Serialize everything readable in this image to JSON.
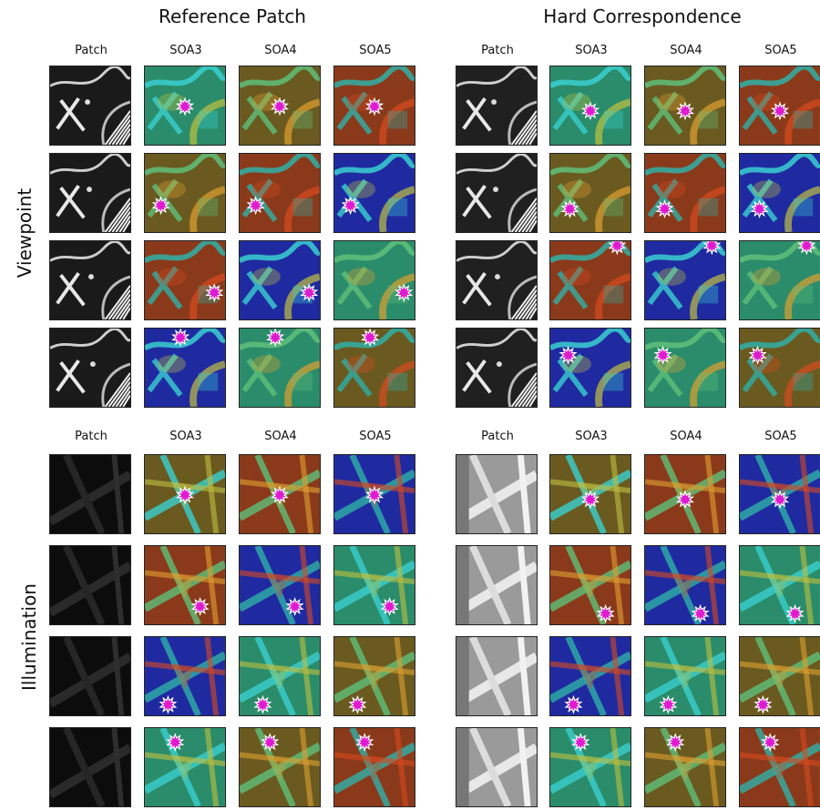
{
  "panels": [
    {
      "title": "Reference Patch"
    },
    {
      "title": "Hard Correspondence"
    }
  ],
  "sections": [
    {
      "name": "Viewpoint",
      "columns": [
        "Patch",
        "SOA3",
        "SOA4",
        "SOA5"
      ]
    },
    {
      "name": "Illumination",
      "columns": [
        "Patch",
        "SOA3",
        "SOA4",
        "SOA5"
      ]
    }
  ],
  "colors": {
    "marker_fill": "#e01ad0",
    "marker_stroke": "#ffffff",
    "heat_cool": "#1a2a9a",
    "heat_mid": "#3ab0b0",
    "heat_warm": "#d83a1a"
  },
  "icons": {
    "marker": "star-burst-icon"
  }
}
